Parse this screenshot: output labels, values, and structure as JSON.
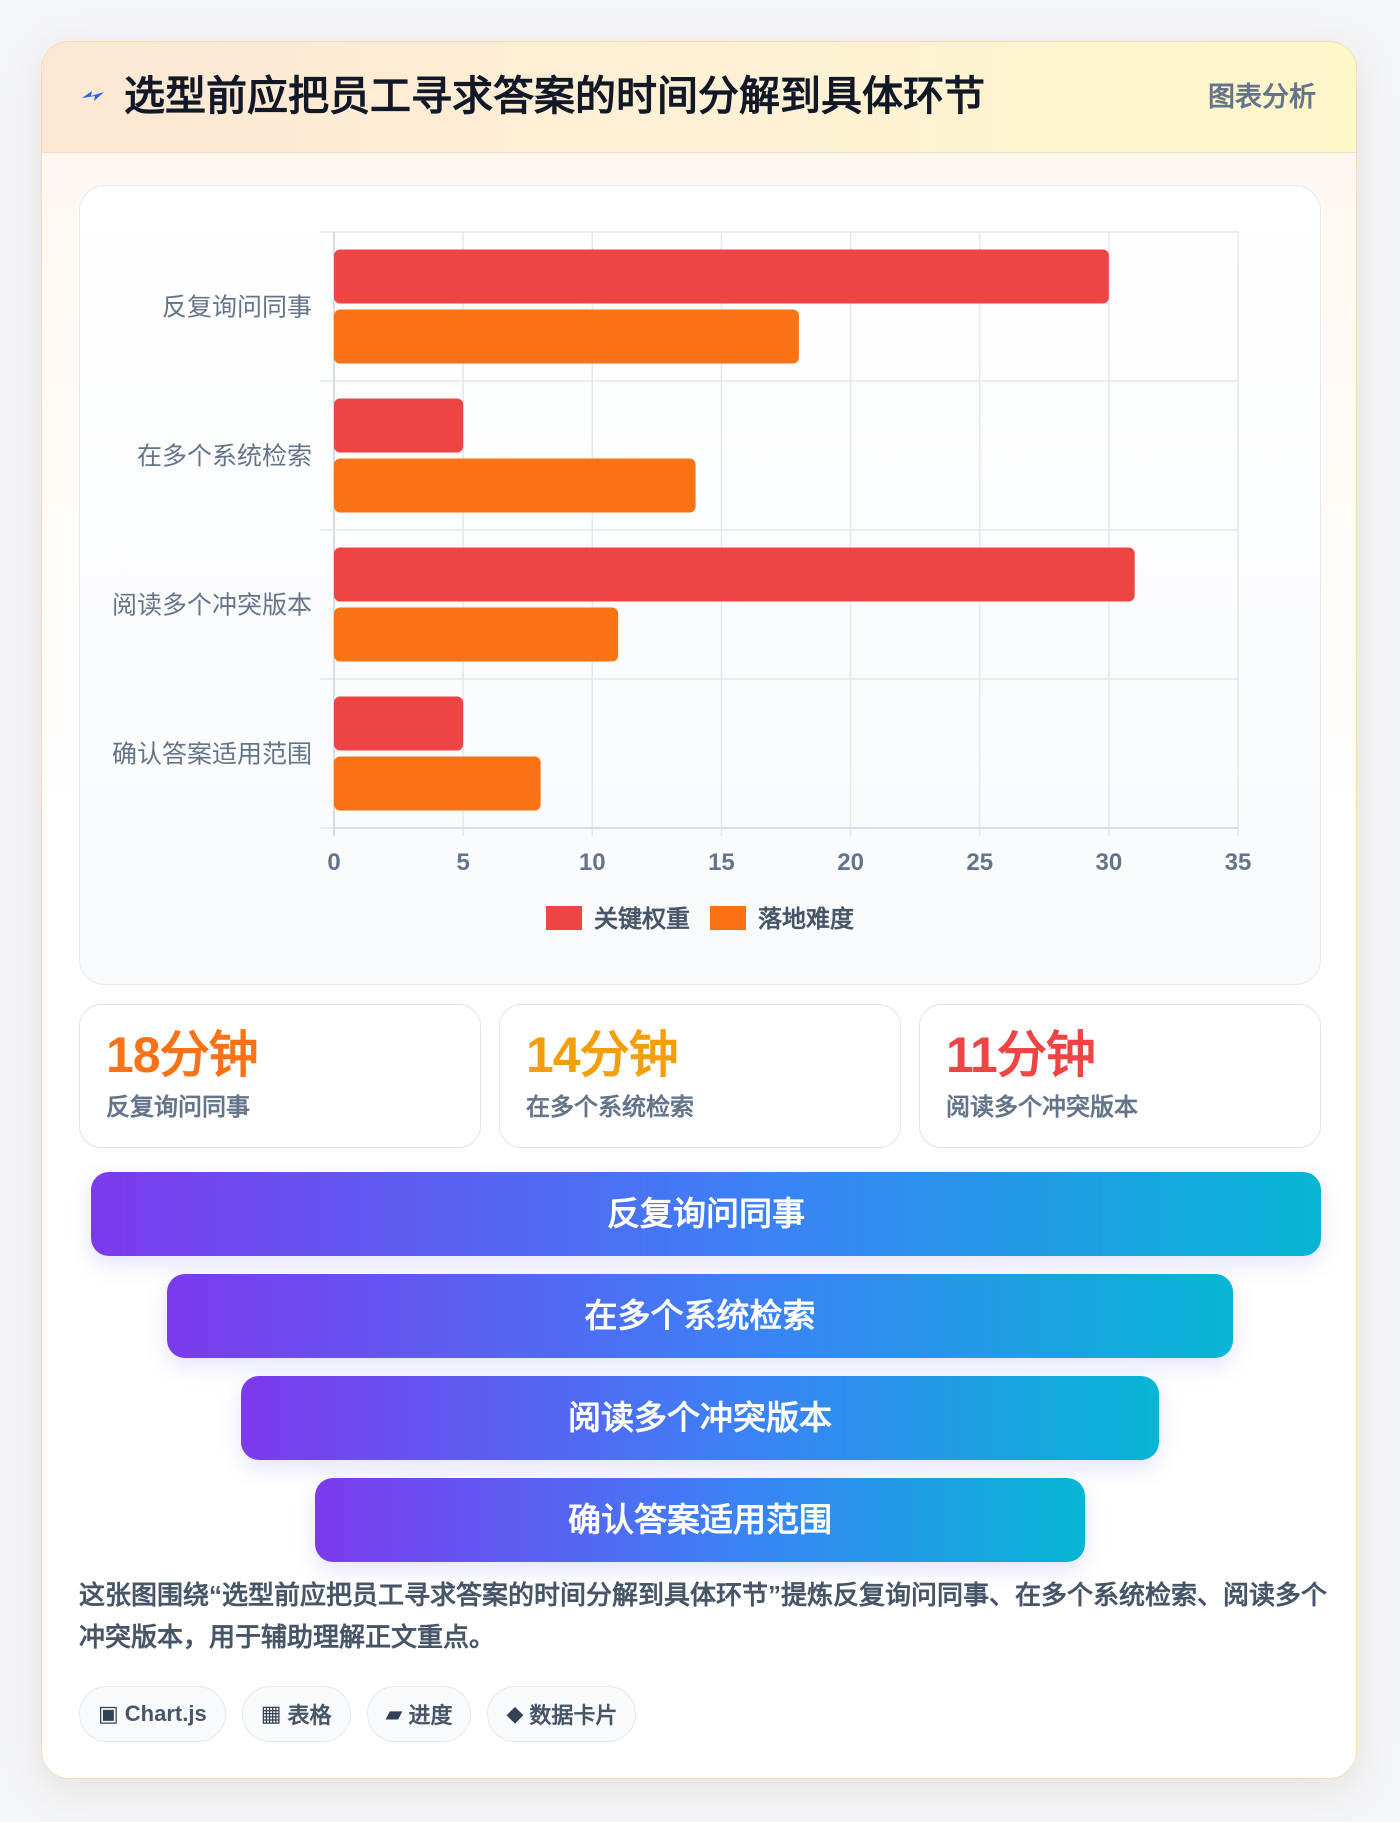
{
  "header": {
    "title": "选型前应把员工寻求答案的时间分解到具体环节",
    "tag": "图表分析",
    "icon": "lightning-bolt-icon"
  },
  "chart_data": {
    "type": "bar",
    "orientation": "horizontal",
    "categories": [
      "反复询问同事",
      "在多个系统检索",
      "阅读多个冲突版本",
      "确认答案适用范围"
    ],
    "series": [
      {
        "name": "关键权重",
        "color": "#ef4444",
        "values": [
          30,
          5,
          31,
          5
        ]
      },
      {
        "name": "落地难度",
        "color": "#f97316",
        "values": [
          18,
          14,
          11,
          8
        ]
      }
    ],
    "xlim": [
      0,
      35
    ],
    "xticks": [
      "0",
      "5",
      "10",
      "15",
      "20",
      "25",
      "30",
      "35"
    ],
    "grid": true,
    "legend_position": "bottom"
  },
  "stats": [
    {
      "value": "18分钟",
      "label": "反复询问同事",
      "color": "#f97316"
    },
    {
      "value": "14分钟",
      "label": "在多个系统检索",
      "color": "#f59e0b"
    },
    {
      "value": "11分钟",
      "label": "阅读多个冲突版本",
      "color": "#ef4444"
    }
  ],
  "funnel": [
    "反复询问同事",
    "在多个系统检索",
    "阅读多个冲突版本",
    "确认答案适用范围"
  ],
  "description": "这张图围绕“选型前应把员工寻求答案的时间分解到具体环节”提炼反复询问同事、在多个系统检索、阅读多个冲突版本，用于辅助理解正文重点。",
  "pills": [
    {
      "icon": "▣",
      "label": "Chart.js"
    },
    {
      "icon": "▦",
      "label": "表格"
    },
    {
      "icon": "▰",
      "label": "进度"
    },
    {
      "icon": "◆",
      "label": "数据卡片"
    }
  ]
}
